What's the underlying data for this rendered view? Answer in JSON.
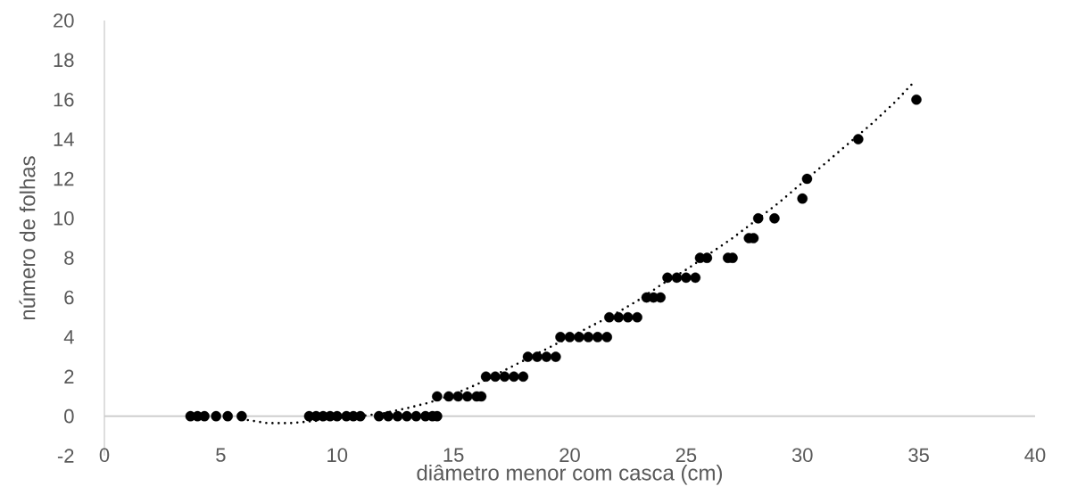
{
  "chart_data": {
    "type": "scatter",
    "xlabel": "diâmetro menor com casca (cm)",
    "ylabel": "número de folhas",
    "xlim": [
      0,
      40
    ],
    "ylim": [
      -2,
      20
    ],
    "xticks": [
      0,
      5,
      10,
      15,
      20,
      25,
      30,
      35,
      40
    ],
    "yticks": [
      -2,
      0,
      2,
      4,
      6,
      8,
      10,
      12,
      14,
      16,
      18,
      20
    ],
    "grid": false,
    "series": [
      {
        "color": "#000000",
        "marker": "circle",
        "x": [
          3.7,
          4.0,
          4.3,
          4.8,
          5.3,
          5.9,
          8.8,
          9.1,
          9.4,
          9.7,
          10.0,
          10.4,
          10.7,
          11.0,
          11.8,
          12.2,
          12.6,
          13.0,
          13.4,
          13.8,
          14.1,
          14.3,
          14.3,
          14.8,
          15.2,
          15.6,
          16.0,
          16.2,
          16.4,
          16.8,
          17.2,
          17.6,
          18.0,
          18.2,
          18.6,
          19.0,
          19.4,
          19.6,
          20.0,
          20.4,
          20.8,
          21.2,
          21.6,
          21.7,
          22.1,
          22.5,
          22.9,
          23.3,
          23.6,
          23.9,
          24.2,
          24.6,
          25.0,
          25.4,
          25.6,
          25.9,
          26.8,
          27.0,
          27.7,
          27.9,
          28.1,
          28.8,
          30.0,
          30.2,
          32.4,
          34.9
        ],
        "values": [
          0,
          0,
          0,
          0,
          0,
          0,
          0,
          0,
          0,
          0,
          0,
          0,
          0,
          0,
          0,
          0,
          0,
          0,
          0,
          0,
          0,
          0,
          1,
          1,
          1,
          1,
          1,
          1,
          2,
          2,
          2,
          2,
          2,
          3,
          3,
          3,
          3,
          4,
          4,
          4,
          4,
          4,
          4,
          5,
          5,
          5,
          5,
          6,
          6,
          6,
          7,
          7,
          7,
          7,
          8,
          8,
          8,
          8,
          9,
          9,
          10,
          10,
          11,
          12,
          14,
          16
        ]
      },
      {
        "type": "line",
        "color": "#000000",
        "line_style": "dotted",
        "marker": "none",
        "x": [
          5.9,
          7,
          8,
          9,
          10,
          11,
          12,
          13,
          14,
          15,
          16,
          17,
          18,
          19,
          20,
          21,
          22,
          23,
          24,
          25,
          26,
          27,
          28,
          29,
          30,
          31,
          32,
          33,
          34,
          34.8
        ],
        "values": [
          -0.15,
          -0.35,
          -0.35,
          -0.25,
          -0.1,
          0,
          0.15,
          0.4,
          0.7,
          1.1,
          1.6,
          2.2,
          2.8,
          3.4,
          4.0,
          4.6,
          5.2,
          5.9,
          6.7,
          7.4,
          8.2,
          9.0,
          9.9,
          10.8,
          11.8,
          12.8,
          13.8,
          14.8,
          15.9,
          16.9
        ]
      }
    ]
  }
}
